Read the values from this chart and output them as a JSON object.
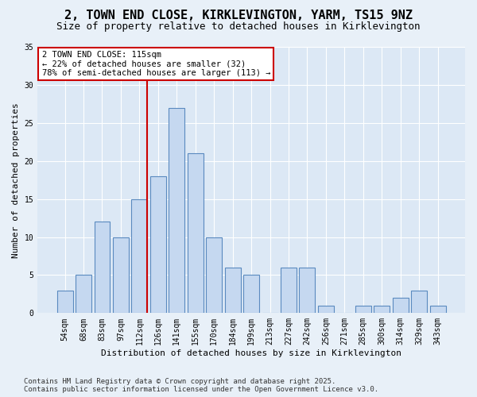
{
  "title": "2, TOWN END CLOSE, KIRKLEVINGTON, YARM, TS15 9NZ",
  "subtitle": "Size of property relative to detached houses in Kirklevington",
  "xlabel": "Distribution of detached houses by size in Kirklevington",
  "ylabel": "Number of detached properties",
  "categories": [
    "54sqm",
    "68sqm",
    "83sqm",
    "97sqm",
    "112sqm",
    "126sqm",
    "141sqm",
    "155sqm",
    "170sqm",
    "184sqm",
    "199sqm",
    "213sqm",
    "227sqm",
    "242sqm",
    "256sqm",
    "271sqm",
    "285sqm",
    "300sqm",
    "314sqm",
    "329sqm",
    "343sqm"
  ],
  "values": [
    3,
    5,
    12,
    10,
    15,
    18,
    27,
    21,
    10,
    6,
    5,
    0,
    6,
    6,
    1,
    0,
    1,
    1,
    2,
    3,
    1
  ],
  "bar_color": "#c5d8f0",
  "bar_edge_color": "#5a8abf",
  "property_line_x": 4.42,
  "annotation_line1": "2 TOWN END CLOSE: 115sqm",
  "annotation_line2": "← 22% of detached houses are smaller (32)",
  "annotation_line3": "78% of semi-detached houses are larger (113) →",
  "annotation_box_color": "#ffffff",
  "annotation_box_edge": "#cc0000",
  "vline_color": "#cc0000",
  "ylim": [
    0,
    35
  ],
  "yticks": [
    0,
    5,
    10,
    15,
    20,
    25,
    30,
    35
  ],
  "bg_color": "#e8f0f8",
  "plot_bg_color": "#dce8f5",
  "footer_line1": "Contains HM Land Registry data © Crown copyright and database right 2025.",
  "footer_line2": "Contains public sector information licensed under the Open Government Licence v3.0.",
  "title_fontsize": 11,
  "subtitle_fontsize": 9,
  "axis_label_fontsize": 8,
  "tick_fontsize": 7,
  "annotation_fontsize": 7.5,
  "footer_fontsize": 6.5
}
